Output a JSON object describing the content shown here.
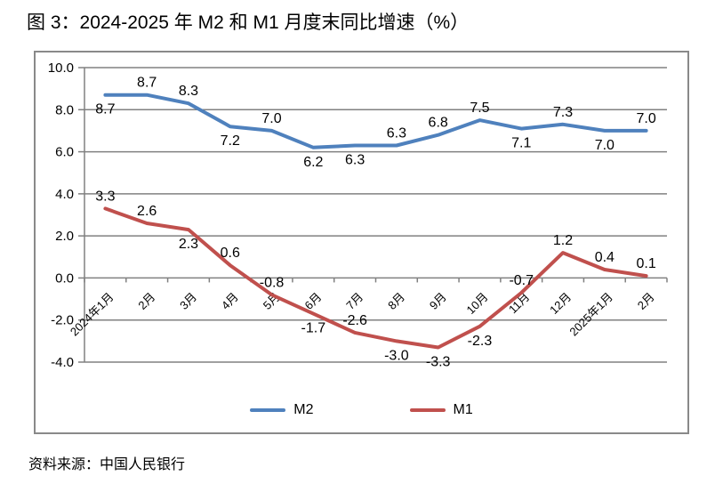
{
  "page": {
    "title": "图 3：2024-2025 年 M2 和 M1 月度末同比增速（%）",
    "source_note": "资料来源：中国人民银行"
  },
  "chart_data": {
    "type": "line",
    "title": "2024-2025 年 M2 和 M1 月度末同比增速（%）",
    "categories": [
      "2024年1月",
      "2月",
      "3月",
      "4月",
      "5月",
      "6月",
      "7月",
      "8月",
      "9月",
      "10月",
      "11月",
      "12月",
      "2025年1月",
      "2月"
    ],
    "series": [
      {
        "name": "M2",
        "color": "#4F81BD",
        "values": [
          8.7,
          8.7,
          8.3,
          7.2,
          7.0,
          6.2,
          6.3,
          6.3,
          6.8,
          7.5,
          7.1,
          7.3,
          7.0,
          7.0
        ],
        "label_side": [
          "below",
          "above",
          "above",
          "below",
          "above",
          "below",
          "below",
          "above",
          "above",
          "above",
          "below",
          "above",
          "below",
          "above"
        ]
      },
      {
        "name": "M1",
        "color": "#C0504D",
        "values": [
          3.3,
          2.6,
          2.3,
          0.6,
          -0.8,
          -1.7,
          -2.6,
          -3.0,
          -3.3,
          -2.3,
          -0.7,
          1.2,
          0.4,
          0.1
        ],
        "label_side": [
          "above",
          "above",
          "below",
          "above",
          "above",
          "below",
          "above",
          "below",
          "below",
          "below",
          "above",
          "above",
          "above",
          "above"
        ]
      }
    ],
    "xlabel": "",
    "ylabel": "",
    "ylim": [
      -4,
      10
    ],
    "y_tick_step": 2,
    "y_ticks": [
      "10.0",
      "8.0",
      "6.0",
      "4.0",
      "2.0",
      "0.0",
      "-2.0",
      "-4.0"
    ],
    "grid": true,
    "legend_position": "bottom",
    "data_labels": true,
    "colors": {
      "gridline": "#808080",
      "axis": "#808080",
      "frame": "#898989",
      "text": "#000000"
    }
  }
}
